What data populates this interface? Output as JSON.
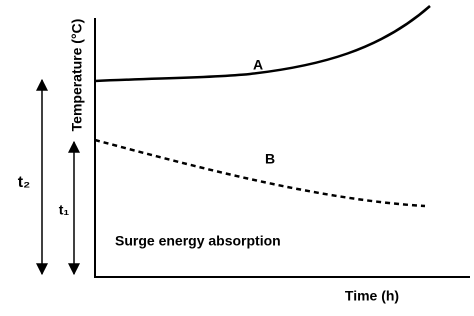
{
  "axes": {
    "y_label": "Temperature (°C)",
    "x_label": "Time (h)"
  },
  "curves": [
    {
      "label": "A"
    },
    {
      "label": "B"
    }
  ],
  "arrows": [
    {
      "label": "t₂"
    },
    {
      "label": "t₁"
    }
  ],
  "annotation": "Surge energy absorption"
}
